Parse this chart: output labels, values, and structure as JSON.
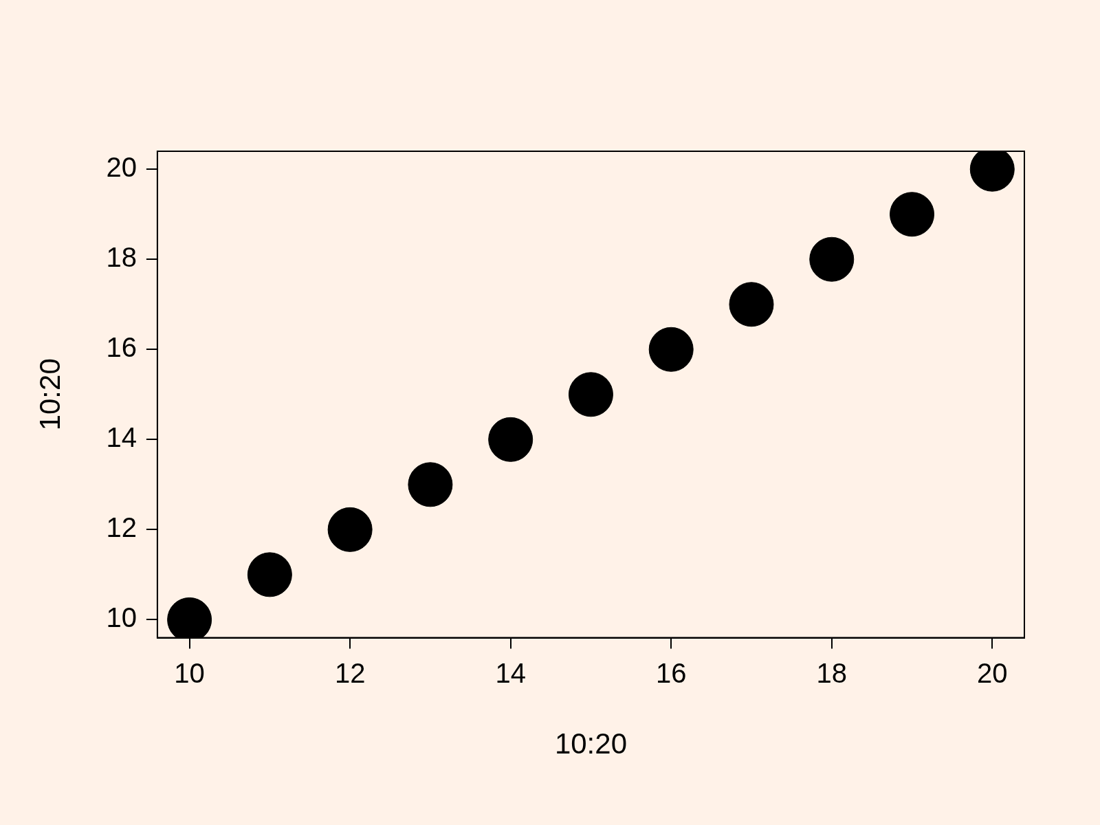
{
  "chart_data": {
    "type": "scatter",
    "xlabel": "10:20",
    "ylabel": "10:20",
    "x": [
      10,
      11,
      12,
      13,
      14,
      15,
      16,
      17,
      18,
      19,
      20
    ],
    "series": [
      {
        "color": "#000000",
        "values": [
          10,
          11,
          12,
          13,
          14,
          15,
          16,
          17,
          18,
          19,
          20
        ]
      }
    ],
    "xlim": [
      9.6,
      20.4
    ],
    "ylim": [
      9.6,
      20.4
    ],
    "xticks": [
      10,
      12,
      14,
      16,
      18,
      20
    ],
    "yticks": [
      10,
      12,
      14,
      16,
      18,
      20
    ],
    "marker": "circle",
    "grid": false,
    "legend": false
  }
}
